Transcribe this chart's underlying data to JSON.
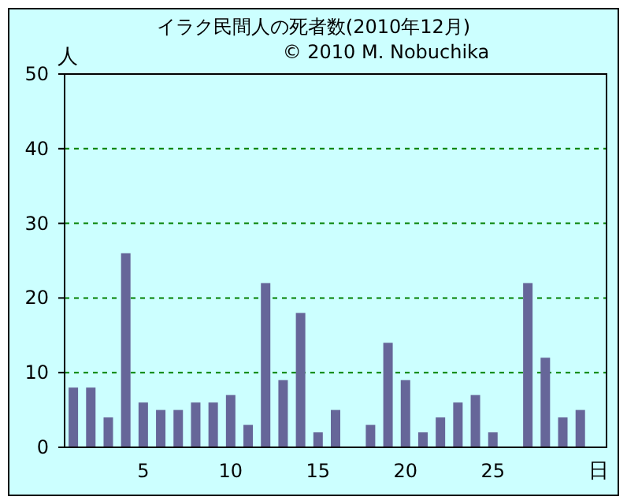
{
  "chart_data": {
    "type": "bar",
    "title": "イラク民間人の死者数(2010年12月)",
    "annotations": [
      "© 2010 M. Nobuchika"
    ],
    "ylabel": "人",
    "xlabel": "日",
    "categories": [
      null,
      null,
      null,
      null,
      "5",
      null,
      null,
      null,
      null,
      "10",
      null,
      null,
      null,
      null,
      "15",
      null,
      null,
      null,
      null,
      "20",
      null,
      null,
      null,
      null,
      "25",
      null,
      null,
      null,
      null,
      null,
      null
    ],
    "values": [
      8,
      8,
      4,
      26,
      6,
      5,
      5,
      6,
      6,
      7,
      3,
      22,
      9,
      18,
      2,
      5,
      0,
      3,
      14,
      9,
      2,
      4,
      6,
      7,
      2,
      0,
      22,
      12,
      4,
      5,
      null
    ],
    "color": "#666699",
    "ylim": [
      0,
      50
    ],
    "yticks": [
      0,
      10,
      20,
      30,
      40,
      50
    ],
    "grid": "y"
  }
}
